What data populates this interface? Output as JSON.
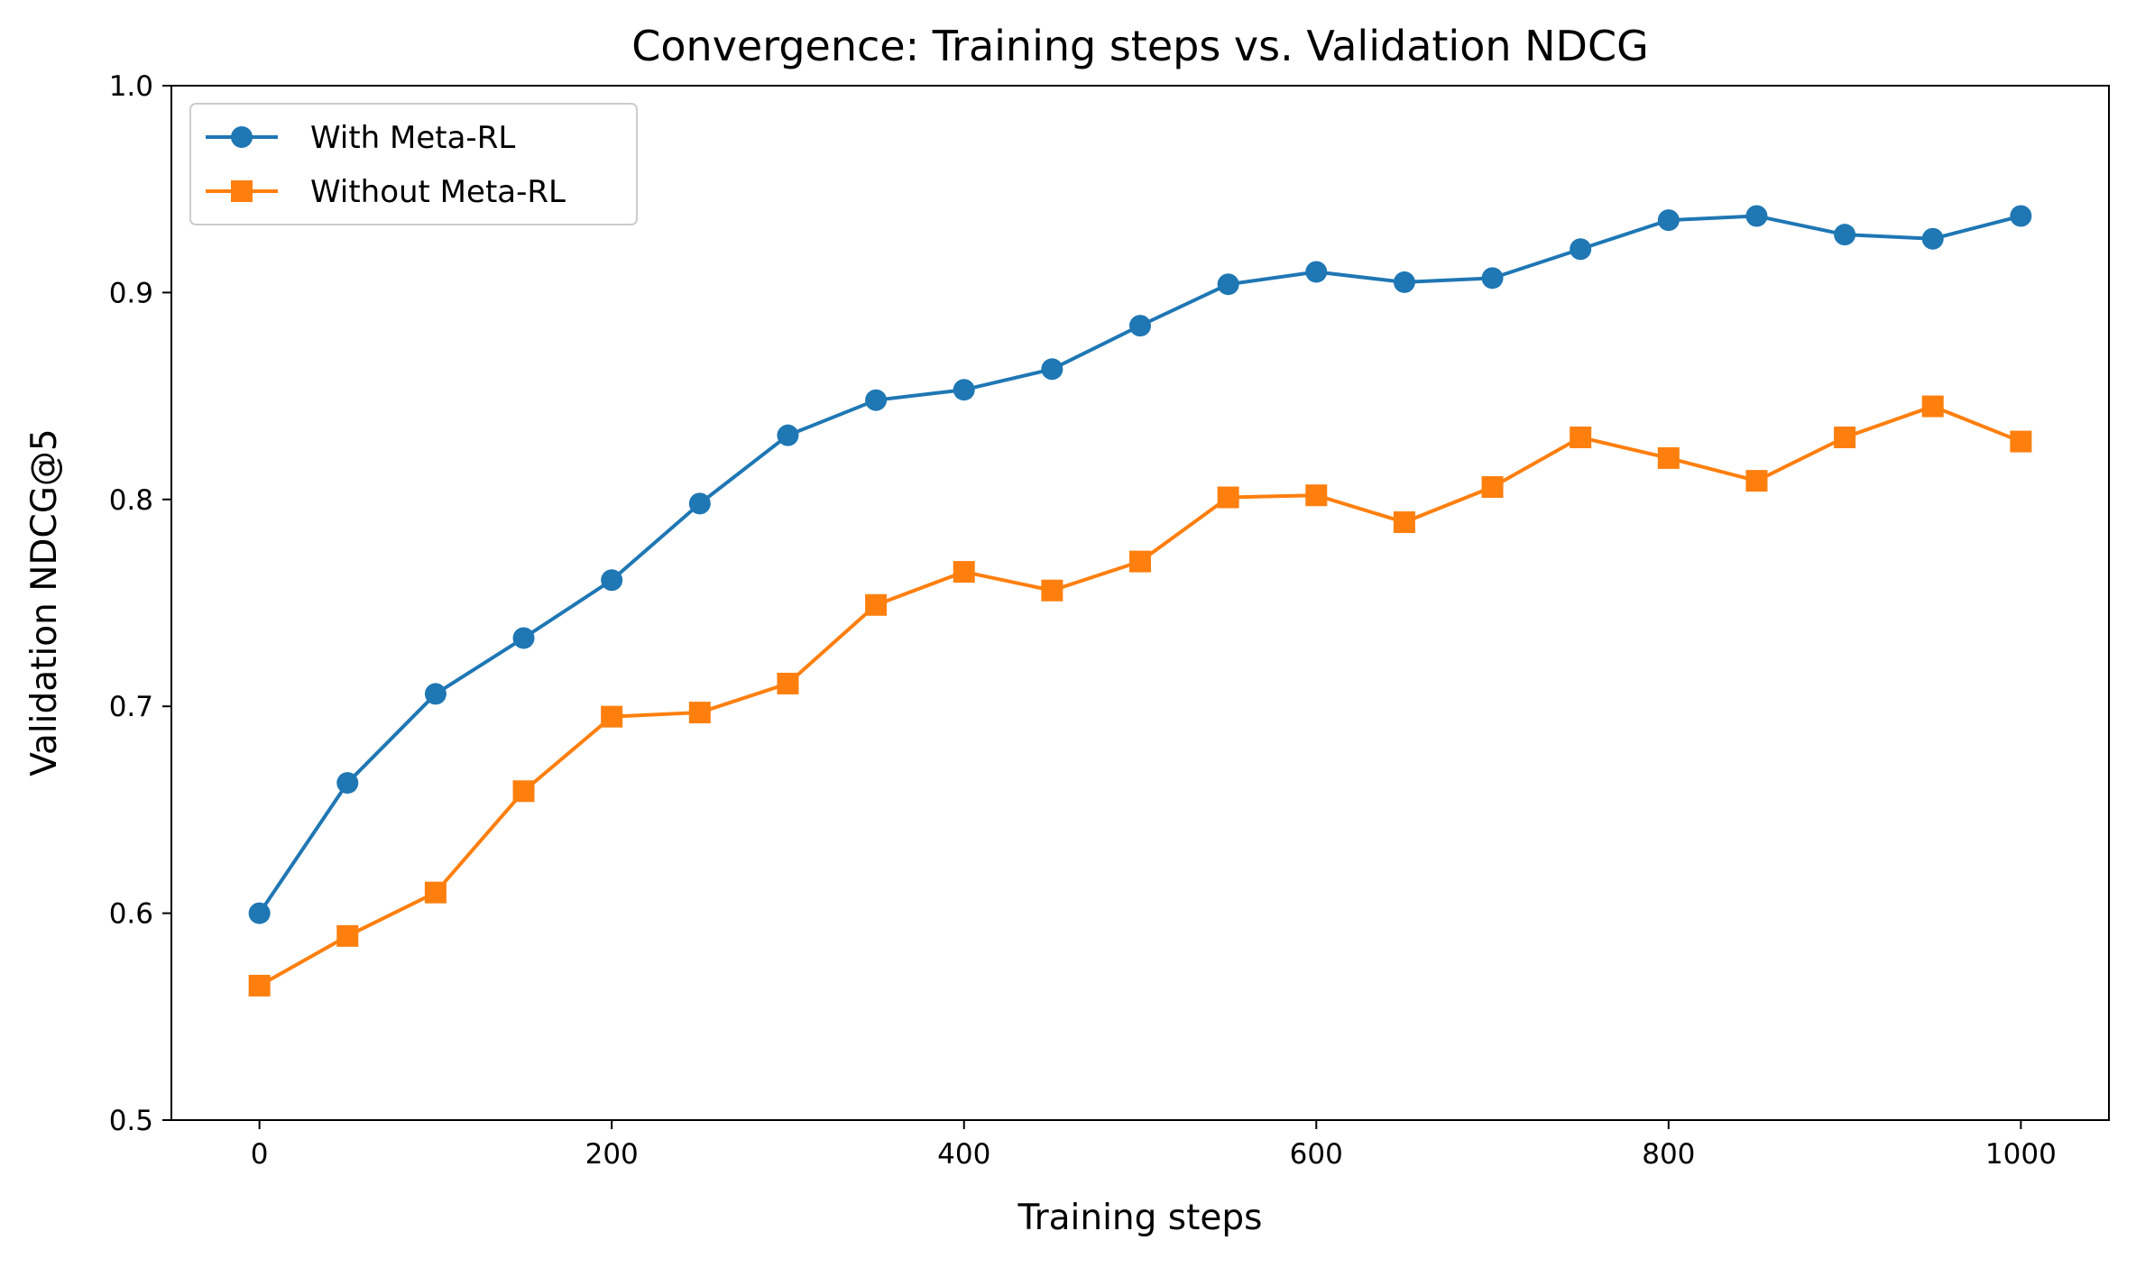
{
  "chart_data": {
    "type": "line",
    "title": "Convergence: Training steps vs. Validation NDCG",
    "xlabel": "Training steps",
    "ylabel": "Validation NDCG@5",
    "xlim": [
      -50,
      1050
    ],
    "ylim": [
      0.5,
      1.0
    ],
    "xticks": [
      0,
      200,
      400,
      600,
      800,
      1000
    ],
    "xtick_labels": [
      "0",
      "200",
      "400",
      "600",
      "800",
      "1000"
    ],
    "yticks": [
      0.5,
      0.6,
      0.7,
      0.8,
      0.9,
      1.0
    ],
    "ytick_labels": [
      "0.5",
      "0.6",
      "0.7",
      "0.8",
      "0.9",
      "1.0"
    ],
    "grid": false,
    "legend_position": "top-left",
    "x": [
      0,
      50,
      100,
      150,
      200,
      250,
      300,
      350,
      400,
      450,
      500,
      550,
      600,
      650,
      700,
      750,
      800,
      850,
      900,
      950,
      1000
    ],
    "series": [
      {
        "name": "With Meta-RL",
        "color": "#1f77b4",
        "marker": "circle",
        "values": [
          0.6,
          0.663,
          0.706,
          0.733,
          0.761,
          0.798,
          0.831,
          0.848,
          0.853,
          0.863,
          0.884,
          0.904,
          0.91,
          0.905,
          0.907,
          0.921,
          0.935,
          0.937,
          0.928,
          0.926,
          0.937
        ]
      },
      {
        "name": "Without Meta-RL",
        "color": "#ff7f0e",
        "marker": "square",
        "values": [
          0.565,
          0.589,
          0.61,
          0.659,
          0.695,
          0.697,
          0.711,
          0.749,
          0.765,
          0.756,
          0.77,
          0.801,
          0.802,
          0.789,
          0.806,
          0.83,
          0.82,
          0.809,
          0.83,
          0.845,
          0.828
        ]
      }
    ]
  }
}
